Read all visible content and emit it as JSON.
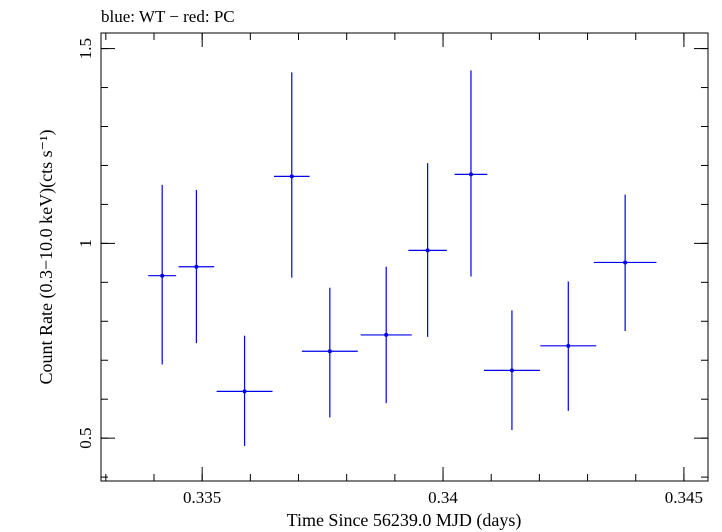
{
  "chart_data": {
    "type": "scatter",
    "title": "blue: WT − red: PC",
    "xlabel": "Time Since 56239.0 MJD (days)",
    "ylabel": "Count Rate (0.3−10.0 keV)(cts s⁻¹)",
    "xlim": [
      0.3329,
      0.3455
    ],
    "ylim": [
      0.39,
      1.54
    ],
    "xticks": [
      {
        "value": 0.335,
        "label": "0.335"
      },
      {
        "value": 0.34,
        "label": "0.34"
      },
      {
        "value": 0.345,
        "label": "0.345"
      }
    ],
    "yticks": [
      {
        "value": 0.5,
        "label": "0.5"
      },
      {
        "value": 1.0,
        "label": "1"
      },
      {
        "value": 1.5,
        "label": "1.5"
      }
    ],
    "xminor_step": 0.001,
    "yminor_step": 0.1,
    "grid": false,
    "colors": {
      "series": "#0000ee",
      "axes": "#000000"
    },
    "series": [
      {
        "points": [
          {
            "x": 0.33417,
            "y": 0.917,
            "xerr": 0.00029,
            "yerr_lo": 0.228,
            "yerr_hi": 0.233
          },
          {
            "x": 0.33488,
            "y": 0.94,
            "xerr": 0.00037,
            "yerr_lo": 0.196,
            "yerr_hi": 0.197
          },
          {
            "x": 0.33588,
            "y": 0.62,
            "xerr": 0.00058,
            "yerr_lo": 0.14,
            "yerr_hi": 0.143
          },
          {
            "x": 0.33686,
            "y": 1.172,
            "xerr": 0.00037,
            "yerr_lo": 0.26,
            "yerr_hi": 0.267
          },
          {
            "x": 0.33765,
            "y": 0.723,
            "xerr": 0.00058,
            "yerr_lo": 0.17,
            "yerr_hi": 0.163
          },
          {
            "x": 0.33882,
            "y": 0.765,
            "xerr": 0.00053,
            "yerr_lo": 0.175,
            "yerr_hi": 0.175
          },
          {
            "x": 0.33968,
            "y": 0.982,
            "xerr": 0.0004,
            "yerr_lo": 0.222,
            "yerr_hi": 0.224
          },
          {
            "x": 0.34058,
            "y": 1.177,
            "xerr": 0.00034,
            "yerr_lo": 0.262,
            "yerr_hi": 0.267
          },
          {
            "x": 0.34143,
            "y": 0.674,
            "xerr": 0.00058,
            "yerr_lo": 0.153,
            "yerr_hi": 0.154
          },
          {
            "x": 0.3426,
            "y": 0.737,
            "xerr": 0.00058,
            "yerr_lo": 0.167,
            "yerr_hi": 0.165
          },
          {
            "x": 0.34378,
            "y": 0.951,
            "xerr": 0.00065,
            "yerr_lo": 0.176,
            "yerr_hi": 0.174
          }
        ]
      }
    ]
  }
}
